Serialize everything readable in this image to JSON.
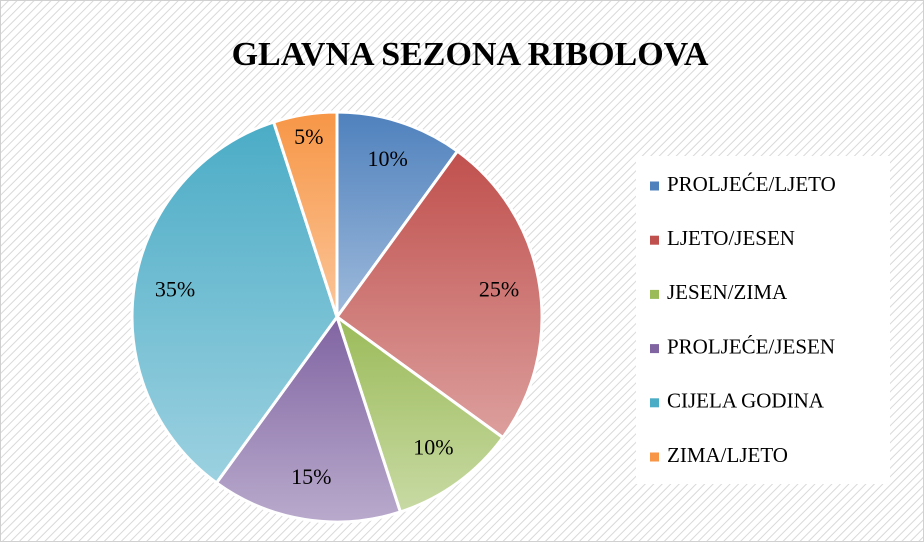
{
  "chart_data": {
    "type": "pie",
    "title": "GLAVNA SEZONA RIBOLOVA",
    "categories": [
      "PROLJEĆE/LJETO",
      "LJETO/JESEN",
      "JESEN/ZIMA",
      "PROLJEĆE/JESEN",
      "CIJELA GODINA",
      "ZIMA/LJETO"
    ],
    "values": [
      10,
      25,
      10,
      15,
      35,
      5
    ],
    "value_labels": [
      "10%",
      "25%",
      "10%",
      "15%",
      "35%",
      "5%"
    ],
    "colors": [
      "#4f81bd",
      "#c0504d",
      "#9bbb59",
      "#8064a2",
      "#4bacc6",
      "#f79646"
    ],
    "legend": "right"
  }
}
